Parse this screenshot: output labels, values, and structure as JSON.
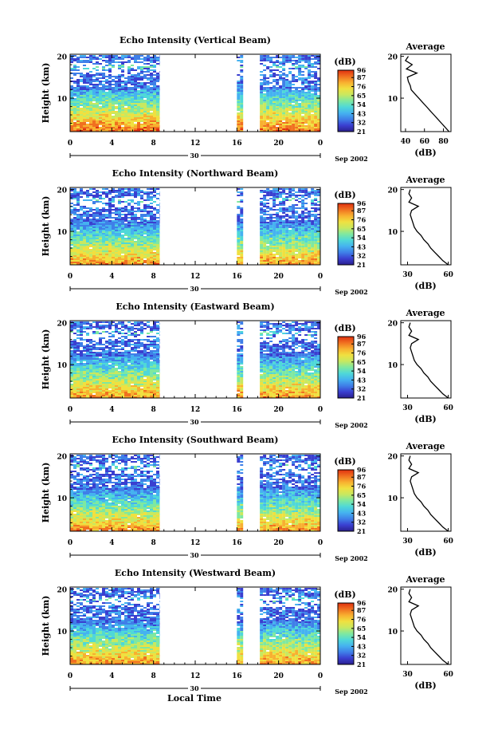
{
  "figure": {
    "x_axis_title": "Local Time",
    "date_label": "Sep 2002",
    "date_day": "30",
    "unit_label": "(dB)",
    "avg_title": "Average",
    "height_label": "Height (km)"
  },
  "colors": {
    "colormap": [
      "#2a1f8f",
      "#3a3fd0",
      "#3f7fe8",
      "#45b2f0",
      "#4fd8d8",
      "#7fe8a0",
      "#c8e860",
      "#f0e040",
      "#f8b030",
      "#f07020",
      "#e03010"
    ]
  },
  "chart_data": [
    {
      "type": "heatmap",
      "title": "Echo Intensity (Vertical Beam)",
      "xlabel": "Local Time",
      "ylabel": "Height (km)",
      "xticks": [
        "0",
        "4",
        "8",
        "12",
        "16",
        "20",
        "0"
      ],
      "yticks": [
        "10",
        "20"
      ],
      "xlim": [
        0,
        24
      ],
      "ylim": [
        2,
        20.5
      ],
      "data_gaps_hours": [
        [
          8.6,
          16.0
        ],
        [
          16.6,
          18.2
        ]
      ],
      "colorbar": {
        "label": "(dB)",
        "ticks": [
          "96",
          "87",
          "76",
          "65",
          "54",
          "43",
          "32",
          "21"
        ],
        "range": [
          21,
          96
        ]
      },
      "average_profile": {
        "title": "Average",
        "xlabel": "(dB)",
        "xticks": [
          "40",
          "60",
          "80"
        ],
        "xlim": [
          35,
          88
        ],
        "ylim": [
          2,
          20.5
        ],
        "height_km": [
          2,
          3,
          4,
          5,
          6,
          7,
          8,
          9,
          10,
          11,
          12,
          13,
          14,
          15,
          16,
          17,
          18,
          19,
          20
        ],
        "values_db": [
          86,
          82,
          78,
          74,
          70,
          66,
          62,
          58,
          54,
          50,
          46,
          45,
          43,
          42,
          52,
          41,
          47,
          40,
          43
        ]
      }
    },
    {
      "type": "heatmap",
      "title": "Echo Intensity (Northward Beam)",
      "xlabel": "Local Time",
      "ylabel": "Height (km)",
      "xticks": [
        "0",
        "4",
        "8",
        "12",
        "16",
        "20",
        "0"
      ],
      "yticks": [
        "10",
        "20"
      ],
      "xlim": [
        0,
        24
      ],
      "ylim": [
        2,
        20.5
      ],
      "data_gaps_hours": [
        [
          8.6,
          16.0
        ],
        [
          16.6,
          18.2
        ]
      ],
      "colorbar": {
        "label": "(dB)",
        "ticks": [
          "96",
          "87",
          "76",
          "65",
          "54",
          "43",
          "32",
          "21"
        ],
        "range": [
          21,
          96
        ]
      },
      "average_profile": {
        "title": "Average",
        "xlabel": "(dB)",
        "xticks": [
          "30",
          "60"
        ],
        "xlim": [
          25,
          62
        ],
        "ylim": [
          2,
          20.5
        ],
        "height_km": [
          2,
          3,
          4,
          5,
          6,
          7,
          8,
          9,
          10,
          11,
          12,
          13,
          14,
          15,
          16,
          17,
          18,
          19,
          20
        ],
        "values_db": [
          60,
          56,
          53,
          50,
          47,
          45,
          42,
          40,
          37,
          35,
          34,
          33,
          32,
          33,
          38,
          31,
          33,
          31,
          32
        ]
      }
    },
    {
      "type": "heatmap",
      "title": "Echo Intensity (Eastward Beam)",
      "xlabel": "Local Time",
      "ylabel": "Height (km)",
      "xticks": [
        "0",
        "4",
        "8",
        "12",
        "16",
        "20",
        "0"
      ],
      "yticks": [
        "10",
        "20"
      ],
      "xlim": [
        0,
        24
      ],
      "ylim": [
        2,
        20.5
      ],
      "data_gaps_hours": [
        [
          8.6,
          16.0
        ],
        [
          16.6,
          18.2
        ]
      ],
      "colorbar": {
        "label": "(dB)",
        "ticks": [
          "96",
          "87",
          "76",
          "65",
          "54",
          "43",
          "32",
          "21"
        ],
        "range": [
          21,
          96
        ]
      },
      "average_profile": {
        "title": "Average",
        "xlabel": "(dB)",
        "xticks": [
          "30",
          "60"
        ],
        "xlim": [
          25,
          62
        ],
        "ylim": [
          2,
          20.5
        ],
        "height_km": [
          2,
          3,
          4,
          5,
          6,
          7,
          8,
          9,
          10,
          11,
          12,
          13,
          14,
          15,
          16,
          17,
          18,
          19,
          20
        ],
        "values_db": [
          60,
          56,
          53,
          50,
          47,
          45,
          42,
          40,
          37,
          35,
          34,
          33,
          32,
          33,
          38,
          31,
          33,
          31,
          32
        ]
      }
    },
    {
      "type": "heatmap",
      "title": "Echo Intensity (Southward Beam)",
      "xlabel": "Local Time",
      "ylabel": "Height (km)",
      "xticks": [
        "0",
        "4",
        "8",
        "12",
        "16",
        "20",
        "0"
      ],
      "yticks": [
        "10",
        "20"
      ],
      "xlim": [
        0,
        24
      ],
      "ylim": [
        2,
        20.5
      ],
      "data_gaps_hours": [
        [
          8.6,
          16.0
        ],
        [
          16.6,
          18.2
        ]
      ],
      "colorbar": {
        "label": "(dB)",
        "ticks": [
          "96",
          "87",
          "76",
          "65",
          "54",
          "43",
          "32",
          "21"
        ],
        "range": [
          21,
          96
        ]
      },
      "average_profile": {
        "title": "Average",
        "xlabel": "(dB)",
        "xticks": [
          "30",
          "60"
        ],
        "xlim": [
          25,
          62
        ],
        "ylim": [
          2,
          20.5
        ],
        "height_km": [
          2,
          3,
          4,
          5,
          6,
          7,
          8,
          9,
          10,
          11,
          12,
          13,
          14,
          15,
          16,
          17,
          18,
          19,
          20
        ],
        "values_db": [
          60,
          56,
          53,
          50,
          47,
          45,
          42,
          40,
          37,
          35,
          34,
          33,
          32,
          33,
          38,
          31,
          33,
          31,
          32
        ]
      }
    },
    {
      "type": "heatmap",
      "title": "Echo Intensity (Westward Beam)",
      "xlabel": "Local Time",
      "ylabel": "Height (km)",
      "xticks": [
        "0",
        "4",
        "8",
        "12",
        "16",
        "20",
        "0"
      ],
      "yticks": [
        "10",
        "20"
      ],
      "xlim": [
        0,
        24
      ],
      "ylim": [
        2,
        20.5
      ],
      "data_gaps_hours": [
        [
          8.6,
          16.0
        ],
        [
          16.6,
          18.2
        ]
      ],
      "colorbar": {
        "label": "(dB)",
        "ticks": [
          "96",
          "87",
          "76",
          "65",
          "54",
          "43",
          "32",
          "21"
        ],
        "range": [
          21,
          96
        ]
      },
      "average_profile": {
        "title": "Average",
        "xlabel": "(dB)",
        "xticks": [
          "30",
          "60"
        ],
        "xlim": [
          25,
          62
        ],
        "ylim": [
          2,
          20.5
        ],
        "height_km": [
          2,
          3,
          4,
          5,
          6,
          7,
          8,
          9,
          10,
          11,
          12,
          13,
          14,
          15,
          16,
          17,
          18,
          19,
          20
        ],
        "values_db": [
          60,
          56,
          53,
          50,
          47,
          45,
          42,
          40,
          37,
          35,
          34,
          33,
          32,
          33,
          38,
          31,
          33,
          31,
          32
        ]
      }
    }
  ]
}
